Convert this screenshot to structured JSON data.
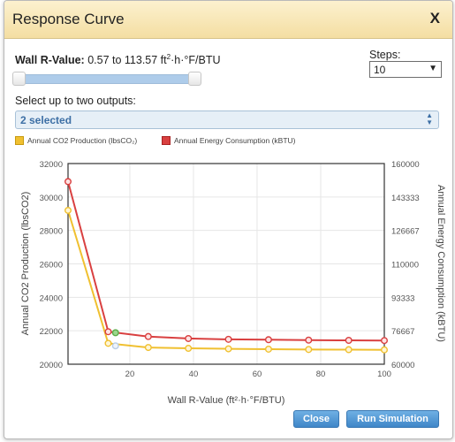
{
  "dialog": {
    "title": "Response Curve",
    "close_glyph": "X"
  },
  "parameter": {
    "name": "Wall R-Value:",
    "range_text": "0.57 to 113.57 ft",
    "unit_sup": "2",
    "unit_rest": "·h·°F/BTU",
    "range_min": 0.57,
    "range_max": 113.57
  },
  "steps": {
    "label": "Steps:",
    "value": "10"
  },
  "outputs": {
    "label": "Select up to two outputs:",
    "selected_text": "2 selected"
  },
  "legend": [
    {
      "label": "Annual CO2 Production (lbsCO₂)",
      "color": "#f0c030"
    },
    {
      "label": "Annual Energy Consumption (kBTU)",
      "color": "#d94040"
    }
  ],
  "buttons": {
    "close": "Close",
    "run": "Run Simulation"
  },
  "colors": {
    "co2": "#f0c030",
    "co2_point_fill": "#fff6d6",
    "energy": "#d94040",
    "energy_point_fill": "#ffe3e3",
    "current_co2": "#b9cde4",
    "current_energy": "#5cad4a",
    "accent_blue": "#3d6fa5"
  },
  "chart_data": {
    "type": "line",
    "xlabel": "Wall R-Value (ft²·h·°F/BTU)",
    "ylabel_left": "Annual CO2 Production (lbsCO2)",
    "ylabel_right": "Annual Energy Consumption (kBTU)",
    "xlim": [
      0.57,
      100
    ],
    "x_ticks": [
      20,
      40,
      60,
      80,
      100
    ],
    "ylim_left": [
      20000,
      32000
    ],
    "y_ticks_left": [
      20000,
      22000,
      24000,
      26000,
      28000,
      30000,
      32000
    ],
    "ylim_right": [
      60000,
      160000
    ],
    "y_ticks_right": [
      "60000",
      "76667",
      "93333",
      "110000",
      "126667",
      "143333",
      "160000"
    ],
    "grid": true,
    "legend_position": "top-left",
    "series": [
      {
        "name": "Annual CO2 Production (lbsCO2)",
        "axis": "left",
        "x": [
          0.57,
          13.2,
          25.8,
          38.4,
          51.0,
          63.6,
          76.2,
          88.8,
          100
        ],
        "values": [
          29200,
          21250,
          21000,
          20950,
          20920,
          20900,
          20880,
          20870,
          20860
        ]
      },
      {
        "name": "Annual Energy Consumption (kBTU)",
        "axis": "right",
        "x": [
          0.57,
          13.2,
          25.8,
          38.4,
          51.0,
          63.6,
          76.2,
          88.8,
          100
        ],
        "values": [
          151000,
          76200,
          73800,
          72800,
          72400,
          72200,
          72000,
          71900,
          71800
        ]
      }
    ],
    "current_point": {
      "x": 15.5,
      "co2": 21100,
      "energy": 75700
    }
  }
}
